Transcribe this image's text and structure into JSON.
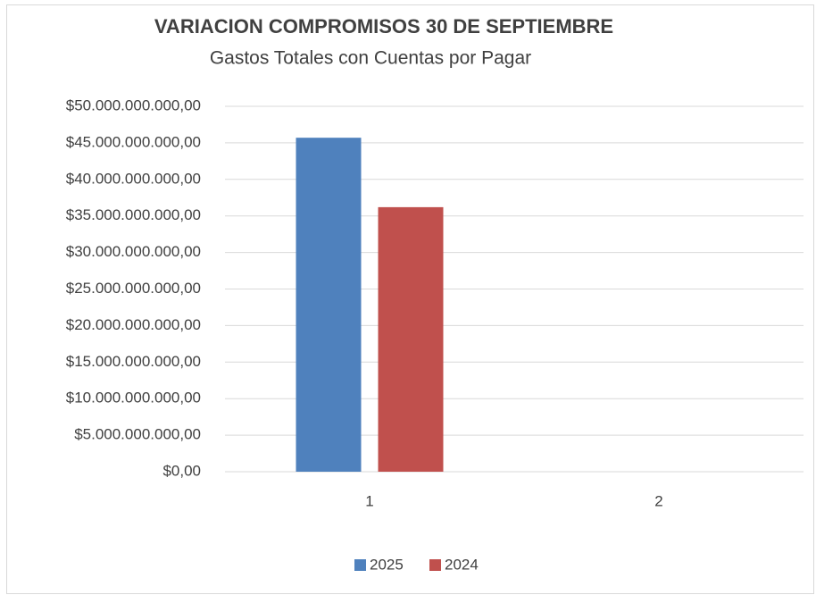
{
  "chart_data": {
    "type": "bar",
    "title": "VARIACION COMPROMISOS  30 DE SEPTIEMBRE",
    "subtitle": "Gastos Totales con Cuentas por Pagar",
    "categories": [
      "1",
      "2"
    ],
    "series": [
      {
        "name": "2025",
        "color": "#4f81bd",
        "values": [
          45700000000,
          null
        ]
      },
      {
        "name": "2024",
        "color": "#c0504d",
        "values": [
          36200000000,
          null
        ]
      }
    ],
    "ylim": [
      0,
      50000000000
    ],
    "yticks": [
      {
        "value": 0,
        "label": "$0,00"
      },
      {
        "value": 5000000000,
        "label": "$5.000.000.000,00"
      },
      {
        "value": 10000000000,
        "label": "$10.000.000.000,00"
      },
      {
        "value": 15000000000,
        "label": "$15.000.000.000,00"
      },
      {
        "value": 20000000000,
        "label": "$20.000.000.000,00"
      },
      {
        "value": 25000000000,
        "label": "$25.000.000.000,00"
      },
      {
        "value": 30000000000,
        "label": "$30.000.000.000,00"
      },
      {
        "value": 35000000000,
        "label": "$35.000.000.000,00"
      },
      {
        "value": 40000000000,
        "label": "$40.000.000.000,00"
      },
      {
        "value": 45000000000,
        "label": "$45.000.000.000,00"
      },
      {
        "value": 50000000000,
        "label": "$50.000.000.000,00"
      }
    ],
    "grid": true,
    "legend": "bottom"
  }
}
